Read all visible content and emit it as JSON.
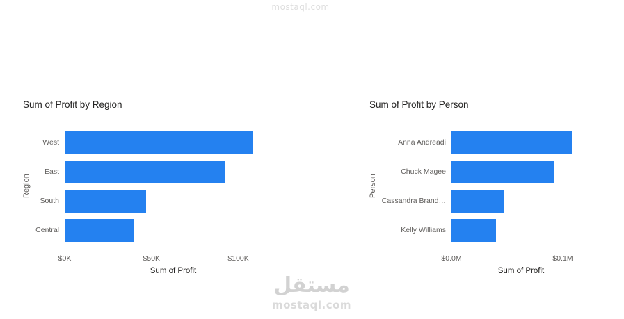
{
  "watermark": {
    "top": "mostaql.com",
    "logo_text": "مستقل",
    "site": "mostaql.com"
  },
  "colors": {
    "bar": "#2481F0",
    "title_text": "#252423",
    "axis_text": "#605E5C",
    "watermark": "#D4D4D4",
    "background": "#FFFFFF"
  },
  "chart_data": [
    {
      "type": "bar",
      "orientation": "horizontal",
      "title": "Sum of Profit by Region",
      "xlabel": "Sum of Profit",
      "ylabel": "Region",
      "categories": [
        "West",
        "East",
        "South",
        "Central"
      ],
      "values": [
        108000,
        92000,
        47000,
        40000
      ],
      "xlim": [
        0,
        125000
      ],
      "xticks": [
        {
          "value": 0,
          "label": "$0K"
        },
        {
          "value": 50000,
          "label": "$50K"
        },
        {
          "value": 100000,
          "label": "$100K"
        }
      ],
      "grid": false,
      "legend": false
    },
    {
      "type": "bar",
      "orientation": "horizontal",
      "title": "Sum of Profit by Person",
      "xlabel": "Sum of Profit",
      "ylabel": "Person",
      "categories": [
        "Anna Andreadi",
        "Chuck Magee",
        "Cassandra Brand…",
        "Kelly Williams"
      ],
      "values": [
        0.108,
        0.092,
        0.047,
        0.04
      ],
      "xlim": [
        0,
        0.125
      ],
      "xticks": [
        {
          "value": 0,
          "label": "$0.0M"
        },
        {
          "value": 0.1,
          "label": "$0.1M"
        }
      ],
      "grid": false,
      "legend": false
    }
  ]
}
